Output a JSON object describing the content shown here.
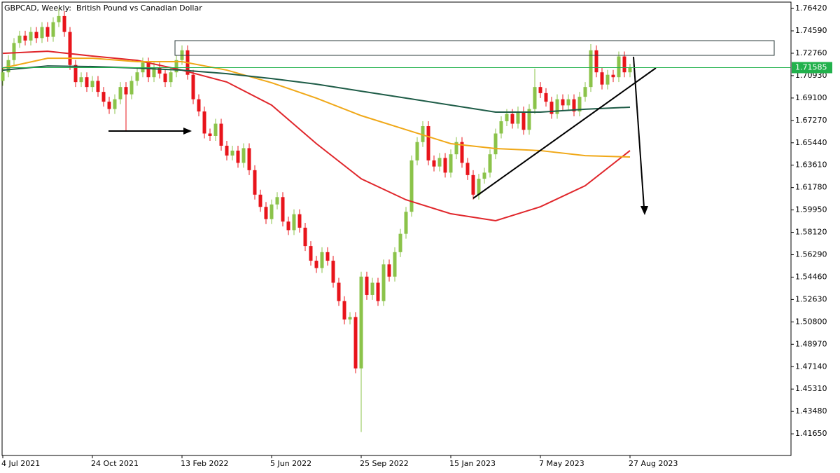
{
  "chart_data": {
    "type": "candlestick",
    "title": "GBPCAD, Weekly:  British Pound vs Canadian Dollar",
    "categories": [
      "4 Jul 2021",
      null,
      null,
      null,
      null,
      null,
      null,
      null,
      null,
      null,
      null,
      null,
      null,
      null,
      null,
      null,
      "24 Oct 2021",
      null,
      null,
      null,
      null,
      null,
      null,
      null,
      null,
      null,
      null,
      null,
      null,
      null,
      null,
      null,
      "13 Feb 2022",
      null,
      null,
      null,
      null,
      null,
      null,
      null,
      null,
      null,
      null,
      null,
      null,
      null,
      null,
      null,
      "5 Jun 2022",
      null,
      null,
      null,
      null,
      null,
      null,
      null,
      null,
      null,
      null,
      null,
      null,
      null,
      null,
      null,
      "25 Sep 2022",
      null,
      null,
      null,
      null,
      null,
      null,
      null,
      null,
      null,
      null,
      null,
      null,
      null,
      null,
      null,
      "15 Jan 2023",
      null,
      null,
      null,
      null,
      null,
      null,
      null,
      null,
      null,
      null,
      null,
      null,
      null,
      null,
      null,
      "7 May 2023",
      null,
      null,
      null,
      null,
      null,
      null,
      null,
      null,
      null,
      null,
      null,
      null,
      null,
      null,
      null,
      "27 Aug 2023"
    ],
    "open": [
      1.705,
      1.712,
      1.722,
      1.736,
      1.742,
      1.738,
      1.745,
      1.74,
      1.749,
      1.741,
      1.753,
      1.758,
      1.745,
      1.718,
      1.704,
      1.708,
      1.7,
      1.705,
      1.696,
      1.688,
      1.682,
      1.69,
      1.7,
      1.694,
      1.705,
      1.712,
      1.72,
      1.708,
      1.716,
      1.711,
      1.704,
      1.712,
      1.722,
      1.73,
      1.71,
      1.69,
      1.68,
      1.662,
      1.66,
      1.67,
      1.652,
      1.644,
      1.648,
      1.638,
      1.65,
      1.632,
      1.612,
      1.602,
      1.592,
      1.604,
      1.61,
      1.59,
      1.583,
      1.596,
      1.585,
      1.57,
      1.558,
      1.552,
      1.565,
      1.558,
      1.54,
      1.525,
      1.51,
      1.512,
      1.47,
      1.545,
      1.53,
      1.54,
      1.525,
      1.555,
      1.545,
      1.565,
      1.58,
      1.598,
      1.64,
      1.655,
      1.668,
      1.64,
      1.635,
      1.642,
      1.63,
      1.645,
      1.655,
      1.638,
      1.628,
      1.612,
      1.625,
      1.63,
      1.645,
      1.662,
      1.672,
      1.678,
      1.67,
      1.68,
      1.665,
      1.682,
      1.7,
      1.695,
      1.688,
      1.678,
      1.69,
      1.685,
      1.69,
      1.68,
      1.692,
      1.7,
      1.73,
      1.712,
      1.702,
      1.71,
      1.708,
      1.725,
      1.712
    ],
    "high": [
      1.716,
      1.726,
      1.74,
      1.746,
      1.746,
      1.749,
      1.749,
      1.753,
      1.753,
      1.757,
      1.764,
      1.762,
      1.749,
      1.722,
      1.712,
      1.712,
      1.709,
      1.709,
      1.7,
      1.692,
      1.694,
      1.704,
      1.704,
      1.709,
      1.716,
      1.724,
      1.724,
      1.72,
      1.72,
      1.715,
      1.716,
      1.726,
      1.734,
      1.734,
      1.714,
      1.694,
      1.684,
      1.666,
      1.674,
      1.674,
      1.656,
      1.652,
      1.652,
      1.654,
      1.654,
      1.636,
      1.616,
      1.606,
      1.608,
      1.614,
      1.614,
      1.594,
      1.6,
      1.6,
      1.589,
      1.574,
      1.562,
      1.569,
      1.569,
      1.562,
      1.544,
      1.529,
      1.516,
      1.516,
      1.549,
      1.549,
      1.544,
      1.544,
      1.559,
      1.559,
      1.569,
      1.584,
      1.602,
      1.644,
      1.659,
      1.672,
      1.672,
      1.644,
      1.646,
      1.646,
      1.649,
      1.659,
      1.659,
      1.642,
      1.632,
      1.629,
      1.634,
      1.649,
      1.666,
      1.676,
      1.682,
      1.682,
      1.684,
      1.684,
      1.686,
      1.715,
      1.704,
      1.699,
      1.692,
      1.694,
      1.694,
      1.694,
      1.694,
      1.696,
      1.704,
      1.735,
      1.734,
      1.716,
      1.714,
      1.714,
      1.729,
      1.729,
      1.719
    ],
    "low": [
      1.701,
      1.708,
      1.718,
      1.732,
      1.734,
      1.734,
      1.736,
      1.736,
      1.737,
      1.737,
      1.749,
      1.741,
      1.714,
      1.7,
      1.7,
      1.696,
      1.696,
      1.692,
      1.684,
      1.678,
      1.678,
      1.686,
      1.664,
      1.69,
      1.701,
      1.708,
      1.704,
      1.704,
      1.707,
      1.7,
      1.7,
      1.708,
      1.718,
      1.706,
      1.686,
      1.676,
      1.658,
      1.656,
      1.656,
      1.648,
      1.64,
      1.64,
      1.634,
      1.634,
      1.628,
      1.608,
      1.598,
      1.588,
      1.588,
      1.6,
      1.586,
      1.579,
      1.579,
      1.581,
      1.566,
      1.554,
      1.548,
      1.548,
      1.554,
      1.536,
      1.521,
      1.506,
      1.506,
      1.466,
      1.418,
      1.526,
      1.526,
      1.521,
      1.521,
      1.541,
      1.541,
      1.561,
      1.576,
      1.594,
      1.636,
      1.651,
      1.636,
      1.631,
      1.631,
      1.626,
      1.626,
      1.641,
      1.634,
      1.624,
      1.608,
      1.608,
      1.621,
      1.626,
      1.641,
      1.658,
      1.668,
      1.666,
      1.666,
      1.661,
      1.661,
      1.678,
      1.691,
      1.684,
      1.674,
      1.674,
      1.681,
      1.681,
      1.676,
      1.676,
      1.688,
      1.696,
      1.708,
      1.698,
      1.698,
      1.704,
      1.704,
      1.708,
      1.708
    ],
    "close": [
      1.712,
      1.722,
      1.736,
      1.742,
      1.738,
      1.745,
      1.74,
      1.749,
      1.741,
      1.753,
      1.758,
      1.745,
      1.718,
      1.704,
      1.708,
      1.7,
      1.705,
      1.696,
      1.688,
      1.682,
      1.69,
      1.7,
      1.694,
      1.705,
      1.712,
      1.72,
      1.708,
      1.716,
      1.711,
      1.704,
      1.712,
      1.722,
      1.73,
      1.71,
      1.69,
      1.68,
      1.662,
      1.66,
      1.67,
      1.652,
      1.644,
      1.648,
      1.638,
      1.65,
      1.632,
      1.612,
      1.602,
      1.592,
      1.604,
      1.61,
      1.59,
      1.583,
      1.596,
      1.585,
      1.57,
      1.558,
      1.552,
      1.565,
      1.558,
      1.54,
      1.525,
      1.51,
      1.512,
      1.47,
      1.545,
      1.53,
      1.54,
      1.525,
      1.555,
      1.545,
      1.565,
      1.58,
      1.598,
      1.64,
      1.655,
      1.668,
      1.64,
      1.635,
      1.642,
      1.63,
      1.645,
      1.655,
      1.638,
      1.628,
      1.612,
      1.625,
      1.63,
      1.645,
      1.662,
      1.672,
      1.678,
      1.67,
      1.68,
      1.665,
      1.682,
      1.7,
      1.695,
      1.688,
      1.678,
      1.69,
      1.685,
      1.69,
      1.68,
      1.692,
      1.7,
      1.73,
      1.712,
      1.702,
      1.71,
      1.708,
      1.725,
      1.712,
      1.71585
    ],
    "up_color": "#8bc34a",
    "down_color": "#e8141b",
    "overlays": [
      {
        "color": "#e0262b",
        "x": [
          0,
          8,
          16,
          24,
          32,
          40,
          48,
          56,
          64,
          72,
          80,
          88,
          96,
          104,
          112
        ],
        "values": [
          1.7275,
          1.7292,
          1.7253,
          1.7218,
          1.7138,
          1.7041,
          1.6852,
          1.6537,
          1.625,
          1.6078,
          1.5964,
          1.5907,
          1.6021,
          1.6193,
          1.648
        ]
      },
      {
        "color": "#f0a818",
        "x": [
          0,
          8,
          16,
          24,
          32,
          40,
          48,
          56,
          64,
          72,
          80,
          88,
          96,
          104,
          112
        ],
        "values": [
          1.7155,
          1.7235,
          1.7235,
          1.7207,
          1.7207,
          1.7138,
          1.7035,
          1.6909,
          1.6766,
          1.6651,
          1.6537,
          1.6497,
          1.648,
          1.6439,
          1.6428
        ]
      },
      {
        "color": "#1e5c47",
        "x": [
          0,
          8,
          16,
          24,
          32,
          40,
          48,
          56,
          64,
          72,
          80,
          88,
          96,
          104,
          112
        ],
        "values": [
          1.7138,
          1.7172,
          1.7167,
          1.7155,
          1.7138,
          1.7109,
          1.7069,
          1.7023,
          1.6966,
          1.6909,
          1.6852,
          1.6795,
          1.6795,
          1.6818,
          1.6835
        ]
      }
    ],
    "last_price": 1.71585,
    "last_price_color": "#22b14c",
    "ylim": [
      1.3988,
      1.7694
    ],
    "yticks": [
      {
        "value": 1.7642,
        "label": "1.76420"
      },
      {
        "value": 1.7459,
        "label": "1.74590"
      },
      {
        "value": 1.7276,
        "label": "1.72760"
      },
      {
        "value": 1.7093,
        "label": "1.70930"
      },
      {
        "value": 1.691,
        "label": "1.69100"
      },
      {
        "value": 1.6727,
        "label": "1.67270"
      },
      {
        "value": 1.6544,
        "label": "1.65440"
      },
      {
        "value": 1.6361,
        "label": "1.63610"
      },
      {
        "value": 1.6178,
        "label": "1.61780"
      },
      {
        "value": 1.5995,
        "label": "1.59950"
      },
      {
        "value": 1.5812,
        "label": "1.58120"
      },
      {
        "value": 1.5629,
        "label": "1.56290"
      },
      {
        "value": 1.5446,
        "label": "1.54460"
      },
      {
        "value": 1.5263,
        "label": "1.52630"
      },
      {
        "value": 1.508,
        "label": "1.50800"
      },
      {
        "value": 1.4897,
        "label": "1.48970"
      },
      {
        "value": 1.4714,
        "label": "1.47140"
      },
      {
        "value": 1.4531,
        "label": "1.45310"
      },
      {
        "value": 1.4348,
        "label": "1.43480"
      },
      {
        "value": 1.4165,
        "label": "1.41650"
      }
    ]
  }
}
